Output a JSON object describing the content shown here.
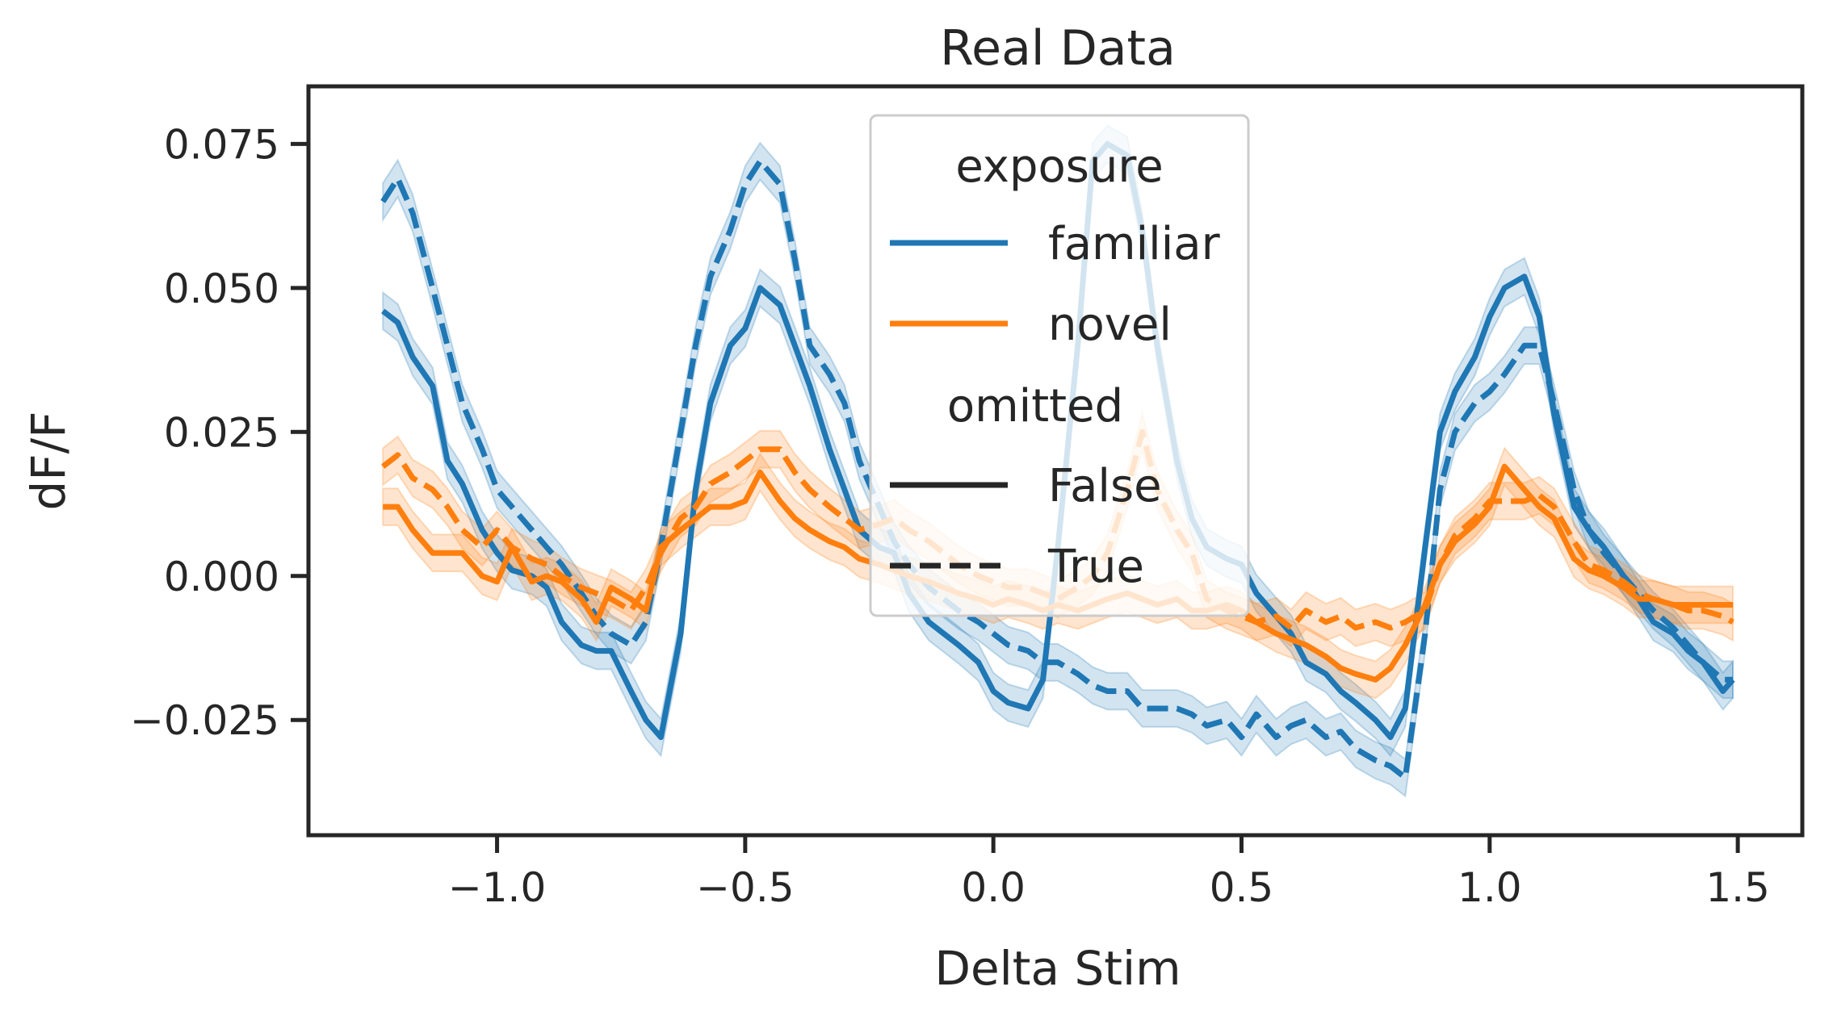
{
  "chart_data": {
    "type": "line",
    "title": "Real Data",
    "xlabel": "Delta Stim",
    "ylabel": "dF/F",
    "xlim": [
      -1.38,
      1.63
    ],
    "ylim": [
      -0.045,
      0.085
    ],
    "xticks": [
      -1.0,
      -0.5,
      0.0,
      0.5,
      1.0,
      1.5
    ],
    "xtick_labels": [
      "−1.0",
      "−0.5",
      "0.0",
      "0.5",
      "1.0",
      "1.5"
    ],
    "yticks": [
      -0.025,
      0.0,
      0.025,
      0.05,
      0.075
    ],
    "ytick_labels": [
      "−0.025",
      "0.000",
      "0.025",
      "0.050",
      "0.075"
    ],
    "grid": false,
    "legend_position": "top-center",
    "legend": {
      "hue_title": "exposure",
      "style_title": "omitted",
      "hue_entries": [
        {
          "label": "familiar",
          "color": "#1f77b4"
        },
        {
          "label": "novel",
          "color": "#ff7f0e"
        }
      ],
      "style_entries": [
        {
          "label": "False",
          "dash": "solid"
        },
        {
          "label": "True",
          "dash": "dashed"
        }
      ]
    },
    "x": [
      -1.23,
      -1.2,
      -1.17,
      -1.13,
      -1.1,
      -1.07,
      -1.03,
      -1.0,
      -0.97,
      -0.93,
      -0.9,
      -0.87,
      -0.83,
      -0.8,
      -0.77,
      -0.73,
      -0.7,
      -0.67,
      -0.63,
      -0.6,
      -0.57,
      -0.53,
      -0.5,
      -0.47,
      -0.43,
      -0.4,
      -0.37,
      -0.33,
      -0.3,
      -0.27,
      -0.23,
      -0.2,
      -0.17,
      -0.13,
      -0.1,
      -0.07,
      -0.03,
      0.0,
      0.03,
      0.07,
      0.1,
      0.13,
      0.17,
      0.2,
      0.23,
      0.27,
      0.3,
      0.33,
      0.37,
      0.4,
      0.43,
      0.47,
      0.5,
      0.53,
      0.57,
      0.6,
      0.63,
      0.67,
      0.7,
      0.73,
      0.77,
      0.8,
      0.83,
      0.87,
      0.9,
      0.93,
      0.97,
      1.0,
      1.03,
      1.07,
      1.1,
      1.13,
      1.17,
      1.2,
      1.23,
      1.27,
      1.3,
      1.33,
      1.37,
      1.4,
      1.43,
      1.47,
      1.49
    ],
    "series": [
      {
        "name": "familiar / False",
        "color": "#1f77b4",
        "dash": "solid",
        "values": [
          0.046,
          0.044,
          0.038,
          0.033,
          0.02,
          0.016,
          0.008,
          0.004,
          0.001,
          0.0,
          -0.002,
          -0.008,
          -0.012,
          -0.013,
          -0.013,
          -0.02,
          -0.025,
          -0.028,
          -0.01,
          0.015,
          0.03,
          0.04,
          0.043,
          0.05,
          0.047,
          0.04,
          0.033,
          0.022,
          0.015,
          0.008,
          0.005,
          0.004,
          -0.003,
          -0.008,
          -0.01,
          -0.012,
          -0.015,
          -0.02,
          -0.022,
          -0.023,
          -0.018,
          0.005,
          0.04,
          0.072,
          0.075,
          0.073,
          0.06,
          0.04,
          0.02,
          0.01,
          0.005,
          0.003,
          0.002,
          -0.003,
          -0.007,
          -0.01,
          -0.015,
          -0.017,
          -0.02,
          -0.022,
          -0.025,
          -0.028,
          -0.023,
          0.005,
          0.025,
          0.032,
          0.038,
          0.045,
          0.05,
          0.052,
          0.045,
          0.028,
          0.012,
          0.008,
          0.005,
          0.0,
          -0.004,
          -0.008,
          -0.01,
          -0.013,
          -0.015,
          -0.02,
          -0.018
        ]
      },
      {
        "name": "familiar / True",
        "color": "#1f77b4",
        "dash": "dashed",
        "values": [
          0.065,
          0.069,
          0.063,
          0.05,
          0.04,
          0.03,
          0.022,
          0.015,
          0.012,
          0.008,
          0.005,
          0.002,
          -0.003,
          -0.007,
          -0.01,
          -0.012,
          -0.008,
          0.005,
          0.025,
          0.04,
          0.052,
          0.06,
          0.068,
          0.072,
          0.068,
          0.055,
          0.04,
          0.035,
          0.03,
          0.02,
          0.012,
          0.006,
          0.002,
          -0.002,
          -0.004,
          -0.006,
          -0.008,
          -0.01,
          -0.012,
          -0.013,
          -0.015,
          -0.015,
          -0.017,
          -0.019,
          -0.02,
          -0.02,
          -0.023,
          -0.023,
          -0.023,
          -0.024,
          -0.026,
          -0.025,
          -0.028,
          -0.024,
          -0.028,
          -0.026,
          -0.025,
          -0.028,
          -0.027,
          -0.03,
          -0.032,
          -0.033,
          -0.035,
          -0.01,
          0.015,
          0.025,
          0.03,
          0.032,
          0.035,
          0.04,
          0.04,
          0.03,
          0.015,
          0.008,
          0.004,
          0.0,
          -0.003,
          -0.006,
          -0.009,
          -0.012,
          -0.015,
          -0.018,
          -0.018
        ]
      },
      {
        "name": "novel / False",
        "color": "#ff7f0e",
        "dash": "solid",
        "values": [
          0.012,
          0.012,
          0.008,
          0.004,
          0.004,
          0.004,
          0.0,
          -0.001,
          0.005,
          -0.001,
          0.0,
          -0.001,
          -0.004,
          -0.008,
          -0.002,
          -0.004,
          -0.006,
          0.005,
          0.008,
          0.01,
          0.012,
          0.012,
          0.013,
          0.018,
          0.013,
          0.01,
          0.008,
          0.006,
          0.005,
          0.003,
          0.002,
          0.001,
          0.0,
          -0.001,
          -0.002,
          -0.003,
          -0.004,
          -0.005,
          -0.004,
          -0.005,
          -0.006,
          -0.005,
          -0.006,
          -0.005,
          -0.004,
          -0.003,
          -0.004,
          -0.005,
          -0.004,
          -0.006,
          -0.006,
          -0.005,
          -0.006,
          -0.008,
          -0.01,
          -0.011,
          -0.012,
          -0.014,
          -0.016,
          -0.017,
          -0.018,
          -0.016,
          -0.012,
          -0.005,
          0.002,
          0.006,
          0.009,
          0.012,
          0.019,
          0.015,
          0.012,
          0.01,
          0.003,
          0.001,
          0.0,
          -0.002,
          -0.004,
          -0.004,
          -0.005,
          -0.005,
          -0.005,
          -0.005,
          -0.005
        ]
      },
      {
        "name": "novel / True",
        "color": "#ff7f0e",
        "dash": "dashed",
        "values": [
          0.019,
          0.021,
          0.017,
          0.015,
          0.012,
          0.008,
          0.005,
          0.008,
          0.005,
          0.003,
          0.002,
          0.0,
          -0.002,
          -0.003,
          -0.004,
          -0.006,
          -0.002,
          0.004,
          0.01,
          0.012,
          0.016,
          0.018,
          0.02,
          0.022,
          0.022,
          0.018,
          0.015,
          0.012,
          0.01,
          0.008,
          0.009,
          0.01,
          0.008,
          0.006,
          0.004,
          0.002,
          0.0,
          -0.001,
          -0.002,
          -0.002,
          -0.003,
          -0.004,
          -0.002,
          0.0,
          0.004,
          0.015,
          0.025,
          0.015,
          0.008,
          0.004,
          -0.004,
          -0.006,
          -0.007,
          -0.008,
          -0.007,
          -0.009,
          -0.006,
          -0.008,
          -0.007,
          -0.009,
          -0.008,
          -0.009,
          -0.008,
          -0.006,
          0.002,
          0.007,
          0.01,
          0.013,
          0.013,
          0.013,
          0.014,
          0.012,
          0.006,
          0.002,
          0.001,
          -0.001,
          -0.003,
          -0.004,
          -0.005,
          -0.006,
          -0.006,
          -0.007,
          -0.008
        ]
      }
    ]
  }
}
